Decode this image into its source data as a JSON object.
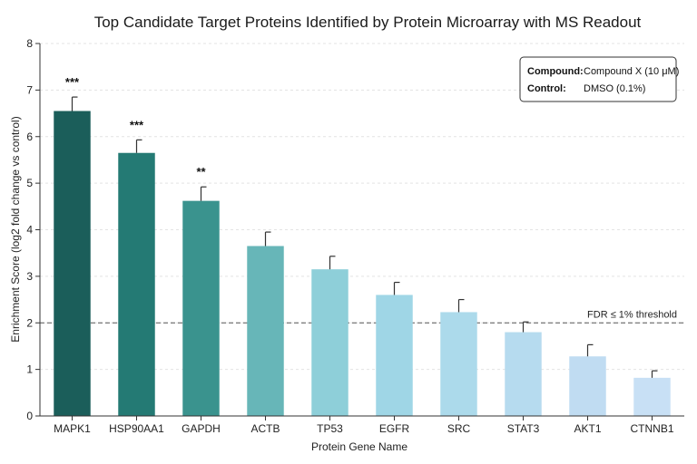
{
  "chart_data": {
    "type": "bar",
    "title": "Top Candidate Target Proteins Identified by Protein Microarray with MS Readout",
    "xlabel": "Protein Gene Name",
    "ylabel": "Enrichment Score (log2 fold change vs control)",
    "ylim": [
      0,
      8
    ],
    "yticks": [
      0,
      1,
      2,
      3,
      4,
      5,
      6,
      7,
      8
    ],
    "grid": true,
    "categories": [
      "MAPK1",
      "HSP90AA1",
      "GAPDH",
      "ACTB",
      "TP53",
      "EGFR",
      "SRC",
      "STAT3",
      "AKT1",
      "CTNNB1"
    ],
    "values": [
      6.55,
      5.65,
      4.62,
      3.65,
      3.15,
      2.6,
      2.23,
      1.8,
      1.28,
      0.82
    ],
    "errors": [
      0.3,
      0.28,
      0.3,
      0.3,
      0.28,
      0.27,
      0.27,
      0.22,
      0.25,
      0.15
    ],
    "significance": [
      "***",
      "***",
      "**",
      "",
      "",
      "",
      "",
      "",
      "",
      ""
    ],
    "colors": [
      "#1b5e5a",
      "#247a74",
      "#3a938e",
      "#67b6b8",
      "#8ecfd9",
      "#9fd6e6",
      "#acdaeb",
      "#b6dbef",
      "#c0dcf2",
      "#c8e0f5"
    ],
    "threshold": {
      "value": 2,
      "label": "FDR ≤ 1% threshold"
    },
    "legend": {
      "placement": "top-right",
      "rows": [
        {
          "key": "Compound:",
          "value": "Compound X (10 μM)"
        },
        {
          "key": "Control:",
          "value": "DMSO (0.1%)"
        }
      ]
    }
  }
}
